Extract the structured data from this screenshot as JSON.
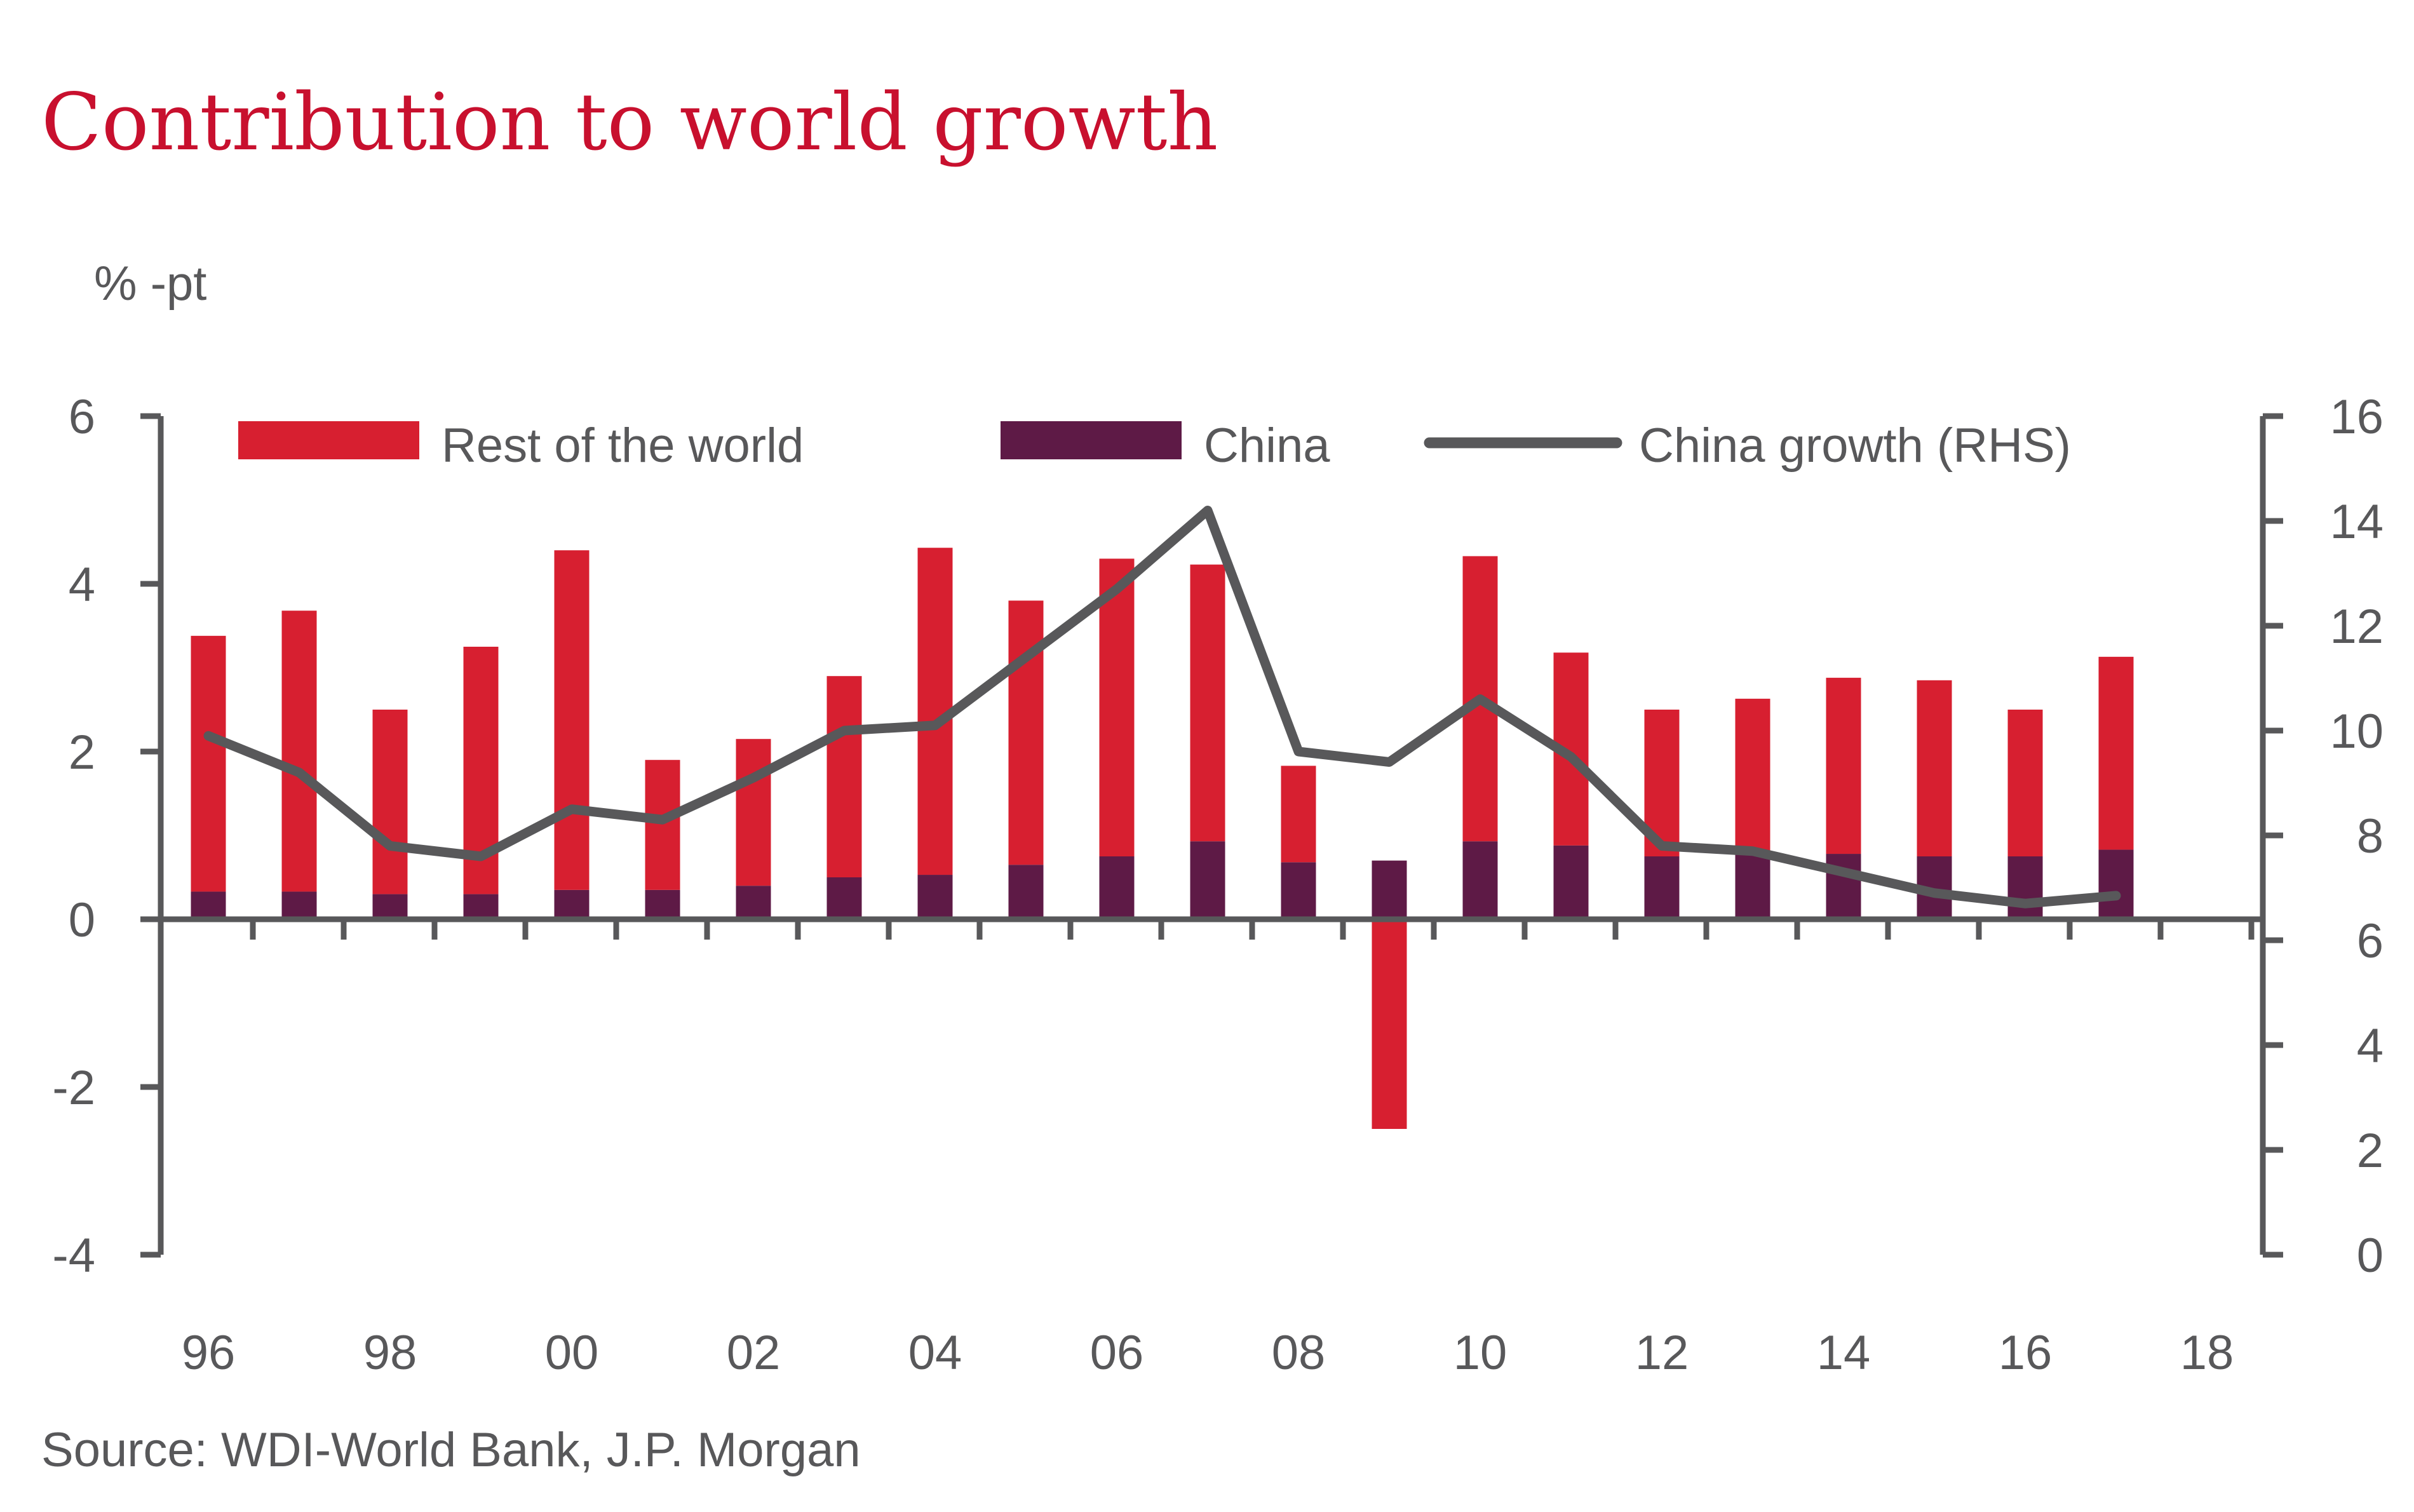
{
  "chart_data": {
    "type": "bar",
    "title": "Contribution to world growth",
    "ylabel": "% -pt",
    "source": "Source: WDI-World Bank, J.P. Morgan",
    "years": [
      1996,
      1997,
      1998,
      1999,
      2000,
      2001,
      2002,
      2003,
      2004,
      2005,
      2006,
      2007,
      2008,
      2009,
      2010,
      2011,
      2012,
      2013,
      2014,
      2015,
      2016,
      2017
    ],
    "x_tick_labels": [
      "96",
      "98",
      "00",
      "02",
      "04",
      "06",
      "08",
      "10",
      "12",
      "14",
      "16",
      "18"
    ],
    "x_tick_years": [
      1996,
      1998,
      2000,
      2002,
      2004,
      2006,
      2008,
      2010,
      2012,
      2014,
      2016,
      2018
    ],
    "ylim_left": [
      -4,
      6
    ],
    "left_ticks": [
      "6",
      "4",
      "2",
      "0",
      "-2",
      "-4"
    ],
    "ylim_right": [
      0,
      16
    ],
    "right_ticks": [
      "16",
      "14",
      "12",
      "10",
      "8",
      "6",
      "4",
      "2",
      "0"
    ],
    "legend": {
      "rest_of_world": "Rest of the world",
      "china": "China",
      "china_growth": "China growth (RHS)"
    },
    "series": [
      {
        "name": "Rest of the world",
        "color": "#d71f30",
        "axis": "left",
        "values": [
          3.05,
          3.35,
          2.2,
          2.95,
          4.05,
          1.55,
          1.75,
          2.4,
          3.9,
          3.15,
          3.55,
          3.3,
          1.15,
          -2.5,
          3.4,
          2.3,
          1.75,
          1.85,
          2.1,
          2.1,
          1.75,
          2.3
        ]
      },
      {
        "name": "China",
        "color": "#5e1a46",
        "axis": "left",
        "values": [
          0.33,
          0.33,
          0.3,
          0.3,
          0.35,
          0.35,
          0.4,
          0.5,
          0.53,
          0.65,
          0.75,
          0.93,
          0.68,
          0.7,
          0.93,
          0.88,
          0.75,
          0.78,
          0.78,
          0.75,
          0.75,
          0.83
        ]
      },
      {
        "name": "China growth (RHS)",
        "color": "#58585a",
        "axis": "right",
        "values": [
          9.9,
          9.2,
          7.8,
          7.6,
          8.5,
          8.3,
          9.1,
          10.0,
          10.1,
          11.4,
          12.7,
          14.2,
          9.6,
          9.4,
          10.6,
          9.5,
          7.8,
          7.7,
          7.3,
          6.9,
          6.7,
          6.85
        ]
      }
    ]
  }
}
